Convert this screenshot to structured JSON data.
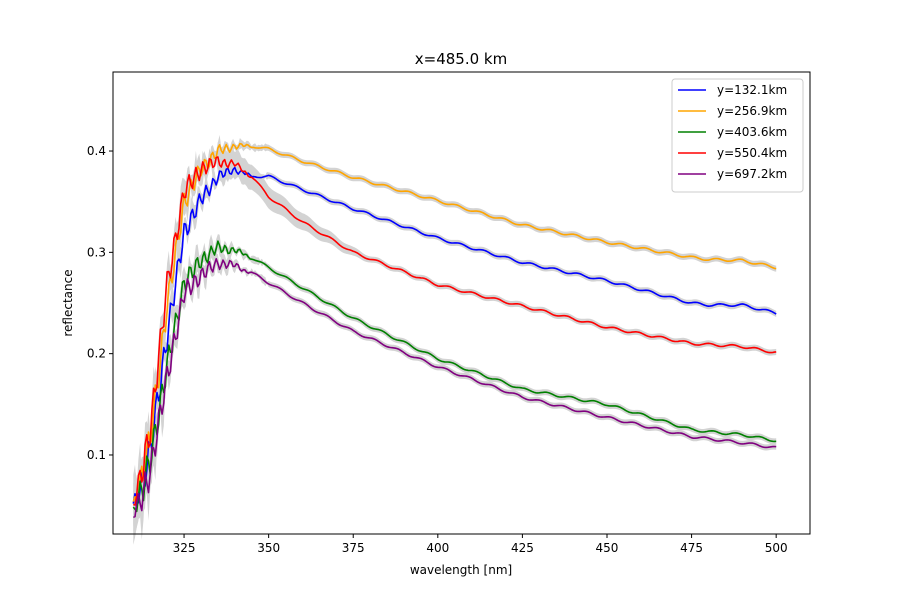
{
  "chart_data": {
    "type": "line",
    "title": "x=485.0 km",
    "xlabel": "wavelength [nm]",
    "ylabel": "reflectance",
    "xlim": [
      304,
      510
    ],
    "ylim": [
      0.022,
      0.478
    ],
    "xticks": [
      325,
      350,
      375,
      400,
      425,
      450,
      475,
      500
    ],
    "yticks": [
      0.1,
      0.2,
      0.3,
      0.4
    ],
    "grid": false,
    "legend_position": "top-right",
    "band_color": "#d3d3d3",
    "series": [
      {
        "name": "y=132.1km",
        "color": "#0000ff",
        "x": [
          310,
          315,
          320,
          325,
          330,
          335,
          340,
          345,
          350,
          360,
          375,
          400,
          425,
          450,
          475,
          480,
          490,
          500
        ],
        "y": [
          0.055,
          0.12,
          0.23,
          0.33,
          0.36,
          0.38,
          0.385,
          0.375,
          0.375,
          0.362,
          0.343,
          0.314,
          0.29,
          0.272,
          0.25,
          0.248,
          0.248,
          0.24
        ]
      },
      {
        "name": "y=256.9km",
        "color": "#ffa500",
        "x": [
          310,
          315,
          320,
          325,
          330,
          335,
          340,
          345,
          350,
          360,
          375,
          400,
          425,
          450,
          475,
          480,
          490,
          500
        ],
        "y": [
          0.055,
          0.13,
          0.26,
          0.36,
          0.39,
          0.405,
          0.408,
          0.405,
          0.402,
          0.39,
          0.374,
          0.351,
          0.327,
          0.31,
          0.295,
          0.293,
          0.292,
          0.285
        ]
      },
      {
        "name": "y=403.6km",
        "color": "#008000",
        "x": [
          310,
          315,
          320,
          325,
          330,
          335,
          340,
          345,
          350,
          360,
          375,
          400,
          425,
          450,
          475,
          480,
          490,
          500
        ],
        "y": [
          0.05,
          0.11,
          0.2,
          0.28,
          0.3,
          0.31,
          0.305,
          0.295,
          0.285,
          0.265,
          0.235,
          0.195,
          0.165,
          0.15,
          0.125,
          0.123,
          0.12,
          0.114
        ]
      },
      {
        "name": "y=550.4km",
        "color": "#ff0000",
        "x": [
          310,
          315,
          320,
          325,
          330,
          335,
          340,
          345,
          350,
          360,
          375,
          400,
          425,
          450,
          475,
          480,
          490,
          500
        ],
        "y": [
          0.055,
          0.14,
          0.28,
          0.37,
          0.39,
          0.395,
          0.39,
          0.375,
          0.355,
          0.33,
          0.3,
          0.268,
          0.247,
          0.226,
          0.21,
          0.209,
          0.207,
          0.201
        ]
      },
      {
        "name": "y=697.2km",
        "color": "#800080",
        "x": [
          310,
          315,
          320,
          325,
          330,
          335,
          340,
          345,
          350,
          360,
          375,
          400,
          425,
          450,
          475,
          480,
          490,
          500
        ],
        "y": [
          0.045,
          0.1,
          0.19,
          0.27,
          0.285,
          0.295,
          0.29,
          0.28,
          0.27,
          0.25,
          0.222,
          0.187,
          0.157,
          0.137,
          0.118,
          0.116,
          0.112,
          0.107
        ]
      }
    ]
  }
}
